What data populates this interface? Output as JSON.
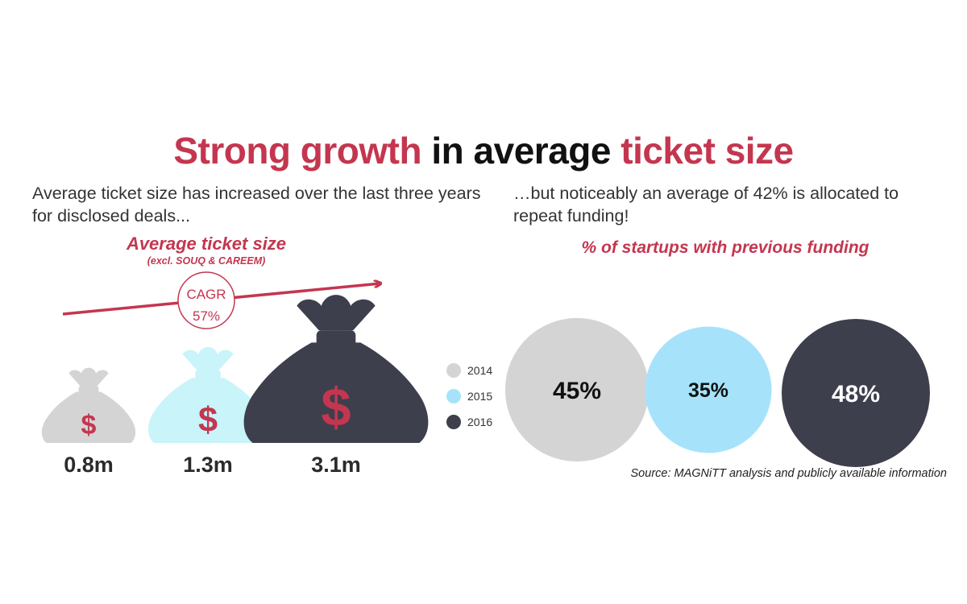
{
  "title": {
    "part1": "Strong growth",
    "part2": "in average",
    "part3": "ticket size"
  },
  "left_subtitle": "Average ticket size has increased over the last three years for disclosed deals...",
  "right_subtitle": "…but noticeably an average of 42% is allocated to repeat funding!",
  "source": "Source: MAGNiTT analysis and publicly available information",
  "colors": {
    "accent": "#c4364f",
    "year_2014": "#d4d4d4",
    "year_2015": "#a6e3fb",
    "year_2016": "#3d3f4d",
    "bag_2015": "#c8f4fa"
  },
  "chart_data": [
    {
      "type": "bar",
      "title": "Average ticket size",
      "subtitle": "(excl. SOUQ & CAREEM)",
      "categories": [
        "2014",
        "2015",
        "2016"
      ],
      "values": [
        0.8,
        1.3,
        3.1
      ],
      "value_labels": [
        "0.8m",
        "1.3m",
        "3.1m"
      ],
      "unit": "m",
      "icon": "money-bag-icon",
      "currency_symbol": "$",
      "cagr_label": "CAGR",
      "cagr_value": "57%"
    },
    {
      "type": "scatter",
      "title": "% of startups with previous funding",
      "categories": [
        "2014",
        "2015",
        "2016"
      ],
      "values": [
        45,
        35,
        48
      ],
      "value_labels": [
        "45%",
        "35%",
        "48%"
      ],
      "legend": [
        "2014",
        "2015",
        "2016"
      ],
      "legend_position": "left"
    }
  ]
}
